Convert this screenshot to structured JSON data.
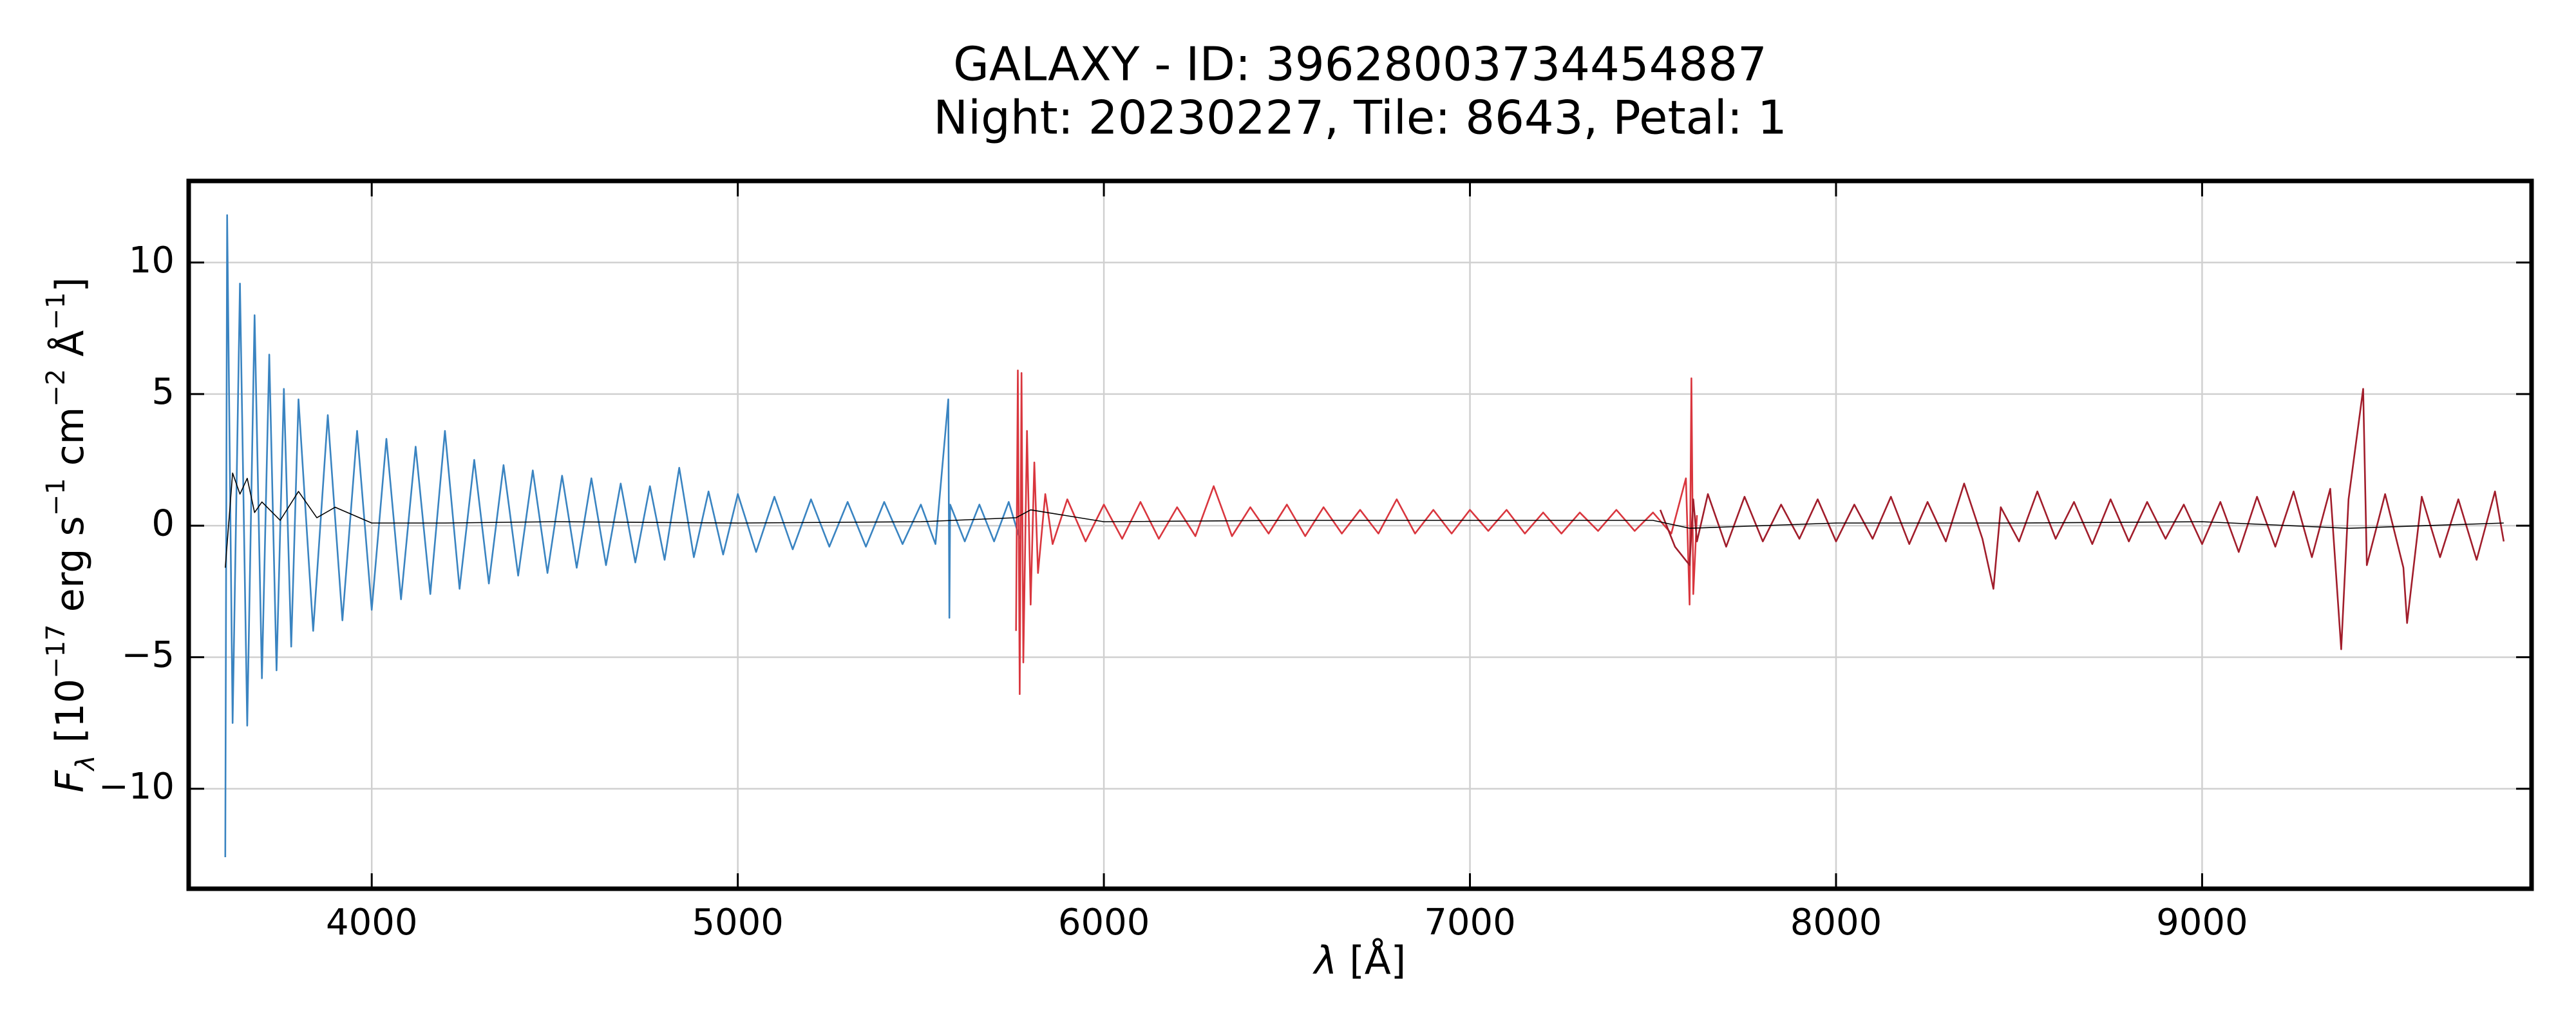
{
  "chart_data": {
    "type": "line",
    "title": [
      "GALAXY - ID: 39628003734454887",
      "Night: 20230227, Tile: 8643, Petal: 1"
    ],
    "xlabel": [
      {
        "text": "λ",
        "style": "italic"
      },
      {
        "text": " [Å]",
        "style": "normal"
      }
    ],
    "ylabel": [
      {
        "text": "F",
        "style": "italic"
      },
      {
        "text": "λ",
        "style": "sub"
      },
      {
        "text": " [10",
        "style": "normal"
      },
      {
        "text": "−17",
        "style": "sup"
      },
      {
        "text": " erg s",
        "style": "normal"
      },
      {
        "text": "−1",
        "style": "sup"
      },
      {
        "text": " cm",
        "style": "normal"
      },
      {
        "text": "−2",
        "style": "sup"
      },
      {
        "text": " Å",
        "style": "normal"
      },
      {
        "text": "−1",
        "style": "sup"
      },
      {
        "text": "]",
        "style": "normal"
      }
    ],
    "xlim": [
      3500,
      9900
    ],
    "ylim": [
      -13.8,
      13.1
    ],
    "xticks": [
      4000,
      5000,
      6000,
      7000,
      8000,
      9000
    ],
    "yticks": [
      {
        "value": -10,
        "label": "−10"
      },
      {
        "value": -5,
        "label": "−5"
      },
      0,
      5,
      10
    ],
    "grid": true,
    "series": [
      {
        "color": "#3a84c1",
        "width": 1,
        "x": [
          3600,
          3605,
          3620,
          3640,
          3660,
          3680,
          3700,
          3720,
          3740,
          3760,
          3780,
          3800,
          3840,
          3880,
          3920,
          3960,
          4000,
          4040,
          4080,
          4120,
          4160,
          4200,
          4240,
          4280,
          4320,
          4360,
          4400,
          4440,
          4480,
          4520,
          4560,
          4600,
          4640,
          4680,
          4720,
          4760,
          4800,
          4840,
          4880,
          4920,
          4960,
          5000,
          5050,
          5100,
          5150,
          5200,
          5250,
          5300,
          5350,
          5400,
          5450,
          5500,
          5540,
          5575,
          5578,
          5580,
          5620,
          5660,
          5700,
          5740,
          5770
        ],
        "values": [
          -12.6,
          11.8,
          -7.5,
          9.2,
          -7.6,
          8.0,
          -5.8,
          6.5,
          -5.5,
          5.2,
          -4.6,
          4.8,
          -4.0,
          4.2,
          -3.6,
          3.6,
          -3.2,
          3.3,
          -2.8,
          3.0,
          -2.6,
          3.6,
          -2.4,
          2.5,
          -2.2,
          2.3,
          -1.9,
          2.1,
          -1.8,
          1.9,
          -1.6,
          1.8,
          -1.5,
          1.6,
          -1.4,
          1.5,
          -1.3,
          2.2,
          -1.2,
          1.3,
          -1.1,
          1.2,
          -1.0,
          1.1,
          -0.9,
          1.0,
          -0.8,
          0.9,
          -0.8,
          0.9,
          -0.7,
          0.8,
          -0.7,
          4.8,
          -3.5,
          0.8,
          -0.6,
          0.8,
          -0.6,
          0.9,
          -0.5
        ]
      },
      {
        "color": "#d9363e",
        "width": 1,
        "x": [
          5760,
          5765,
          5770,
          5775,
          5780,
          5790,
          5800,
          5810,
          5820,
          5840,
          5860,
          5900,
          5950,
          6000,
          6050,
          6100,
          6150,
          6200,
          6250,
          6300,
          6350,
          6400,
          6450,
          6500,
          6550,
          6600,
          6650,
          6700,
          6750,
          6800,
          6850,
          6900,
          6950,
          7000,
          7050,
          7100,
          7150,
          7200,
          7250,
          7300,
          7350,
          7400,
          7450,
          7500,
          7550,
          7590,
          7600,
          7605,
          7610,
          7620
        ],
        "values": [
          -4.0,
          5.9,
          -6.4,
          5.8,
          -5.2,
          3.6,
          -3.0,
          2.4,
          -1.8,
          1.2,
          -0.7,
          1.0,
          -0.6,
          0.8,
          -0.5,
          0.9,
          -0.5,
          0.7,
          -0.4,
          1.5,
          -0.4,
          0.7,
          -0.3,
          0.8,
          -0.4,
          0.7,
          -0.3,
          0.6,
          -0.3,
          1.0,
          -0.3,
          0.6,
          -0.3,
          0.6,
          -0.2,
          0.6,
          -0.3,
          0.5,
          -0.3,
          0.5,
          -0.2,
          0.6,
          -0.2,
          0.5,
          -0.3,
          1.8,
          -3.0,
          5.6,
          -2.6,
          0.4
        ]
      },
      {
        "color": "#a11d2b",
        "width": 1,
        "x": [
          7520,
          7560,
          7600,
          7610,
          7620,
          7650,
          7700,
          7750,
          7800,
          7850,
          7900,
          7950,
          8000,
          8050,
          8100,
          8150,
          8200,
          8250,
          8300,
          8350,
          8400,
          8430,
          8450,
          8500,
          8550,
          8600,
          8650,
          8700,
          8750,
          8800,
          8850,
          8900,
          8950,
          9000,
          9050,
          9100,
          9150,
          9200,
          9250,
          9300,
          9350,
          9380,
          9400,
          9440,
          9450,
          9500,
          9550,
          9560,
          9600,
          9650,
          9700,
          9750,
          9800,
          9824
        ],
        "values": [
          0.6,
          -0.8,
          -1.5,
          1.0,
          -0.6,
          1.2,
          -0.8,
          1.1,
          -0.6,
          0.8,
          -0.5,
          1.0,
          -0.6,
          0.8,
          -0.5,
          1.1,
          -0.7,
          0.9,
          -0.6,
          1.6,
          -0.5,
          -2.4,
          0.7,
          -0.6,
          1.3,
          -0.5,
          0.9,
          -0.7,
          1.0,
          -0.6,
          0.9,
          -0.5,
          0.8,
          -0.7,
          0.9,
          -1.0,
          1.1,
          -0.8,
          1.3,
          -1.2,
          1.4,
          -4.7,
          1.0,
          5.2,
          -1.5,
          1.2,
          -1.6,
          -3.7,
          1.1,
          -1.2,
          1.0,
          -1.3,
          1.3,
          -0.6
        ]
      },
      {
        "color": "#000000",
        "width": 0.6,
        "x": [
          3600,
          3620,
          3640,
          3660,
          3680,
          3700,
          3750,
          3800,
          3850,
          3900,
          4000,
          4200,
          4500,
          5000,
          5500,
          5760,
          5800,
          6000,
          6500,
          7000,
          7500,
          7600,
          8000,
          8500,
          9000,
          9400,
          9824
        ],
        "values": [
          -1.6,
          2.0,
          1.2,
          1.8,
          0.5,
          0.9,
          0.2,
          1.3,
          0.3,
          0.7,
          0.1,
          0.1,
          0.15,
          0.1,
          0.15,
          0.3,
          0.6,
          0.15,
          0.2,
          0.2,
          0.2,
          -0.1,
          0.1,
          0.1,
          0.15,
          -0.1,
          0.1
        ]
      }
    ]
  }
}
